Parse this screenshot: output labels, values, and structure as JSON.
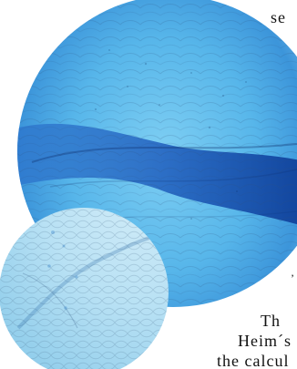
{
  "text_fragments": {
    "top_right": "se",
    "dot_fragment": "’",
    "line_1": "Th",
    "line_2": "Heim´s",
    "line_3": "the calcul"
  },
  "colors": {
    "paper": "#ffffff",
    "circle_main_light": "#b9e6f7",
    "circle_main_mid": "#6cc6f0",
    "circle_main_dark": "#1c5fb8",
    "vein_dark": "#0e2f6a",
    "circle_small_light": "#dbeef7",
    "circle_small_mid": "#a9d8ef",
    "circle_small_blue": "#55b3e3"
  }
}
